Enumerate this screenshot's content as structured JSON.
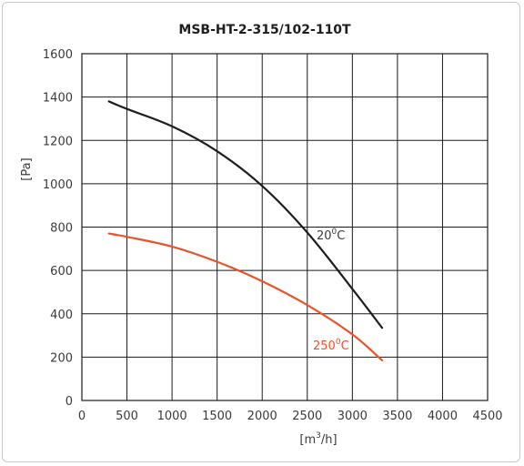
{
  "chart_data": {
    "type": "line",
    "title": "MSB-HT-2-315/102-110T",
    "ylabel": "[Pa]",
    "xlabel_base": "[m",
    "xlabel_sup": "3",
    "xlabel_tail": "/h]",
    "xlim": [
      0,
      4500
    ],
    "ylim": [
      0,
      1600
    ],
    "x_ticks": [
      0,
      500,
      1000,
      1500,
      2000,
      2500,
      3000,
      3500,
      4000,
      4500
    ],
    "y_ticks": [
      0,
      200,
      400,
      600,
      800,
      1000,
      1200,
      1400,
      1600
    ],
    "grid": true,
    "series": [
      {
        "name_base": "20",
        "name_sup": "0",
        "name_unit": "C",
        "color": "#1e1e1e",
        "x": [
          300,
          500,
          1000,
          1500,
          2000,
          2500,
          3000,
          3330
        ],
        "y": [
          1380,
          1345,
          1265,
          1150,
          990,
          775,
          515,
          335
        ]
      },
      {
        "name_base": "250",
        "name_sup": "0",
        "name_unit": "C",
        "color": "#e8532a",
        "x": [
          300,
          500,
          1000,
          1500,
          2000,
          2500,
          3000,
          3330
        ],
        "y": [
          770,
          755,
          710,
          640,
          550,
          440,
          305,
          185
        ]
      }
    ]
  }
}
